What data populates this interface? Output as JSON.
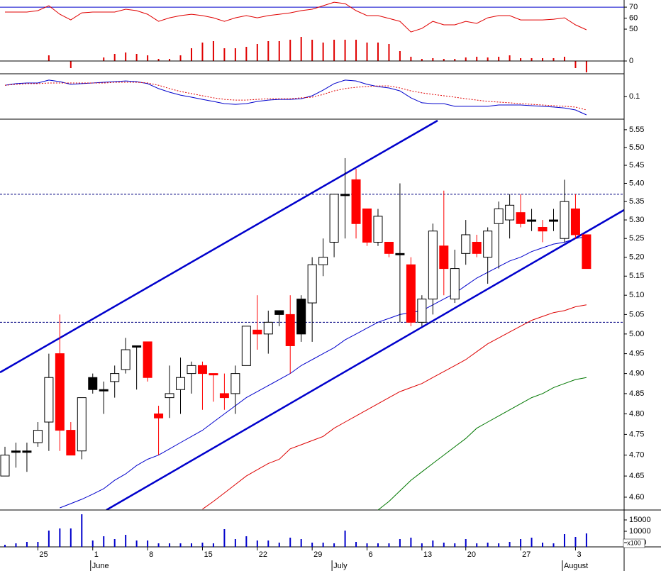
{
  "chart_data": [
    {
      "type": "line",
      "ylim": [
        9.4,
        76.5
      ],
      "yticks": [
        50,
        60,
        70
      ],
      "hlines": [
        70
      ],
      "hline_color": "#0000cc",
      "series": [
        {
          "color": "#e00000",
          "values": [
            65.5,
            65.5,
            65.5,
            66.8,
            71.3,
            63.5,
            58.4,
            64.8,
            65.5,
            65.5,
            65.5,
            68.1,
            66.8,
            63.5,
            57.1,
            60.3,
            62.3,
            63.5,
            62.3,
            60.3,
            57.1,
            60.3,
            62.3,
            60.3,
            62.3,
            63.5,
            64.8,
            66.8,
            68.1,
            71.3,
            74.5,
            73.2,
            66.8,
            62.3,
            62.3,
            59.7,
            57.1,
            47.4,
            50.6,
            57.1,
            53.9,
            53.9,
            57.1,
            55.2,
            60.3,
            62.3,
            62.3,
            58.4,
            58.4,
            58.4,
            59.0,
            60.3,
            53.9,
            49.4
          ]
        }
      ]
    },
    {
      "type": "bar",
      "ylim": [
        -18,
        86
      ],
      "yticks": [
        0
      ],
      "color": "#e00000",
      "values": [
        null,
        null,
        null,
        null,
        8,
        null,
        -10,
        null,
        null,
        5,
        10,
        12,
        10,
        8,
        3,
        3,
        8,
        18,
        26,
        28,
        18,
        18,
        20,
        24,
        28,
        28,
        30,
        34,
        30,
        26,
        30,
        30,
        30,
        26,
        26,
        24,
        14,
        6,
        3,
        4,
        3,
        3,
        5,
        6,
        5,
        6,
        8,
        4,
        4,
        4,
        4,
        6,
        -10,
        -16
      ]
    },
    {
      "type": "line",
      "ylim": [
        0,
        0.202
      ],
      "yticks": [
        0.1
      ],
      "series": [
        {
          "color": "#0000cc",
          "values": [
            0.151,
            0.158,
            0.161,
            0.161,
            0.174,
            0.167,
            0.155,
            0.158,
            0.161,
            0.164,
            0.167,
            0.17,
            0.167,
            0.158,
            0.136,
            0.12,
            0.107,
            0.098,
            0.088,
            0.079,
            0.069,
            0.066,
            0.069,
            0.079,
            0.085,
            0.088,
            0.088,
            0.091,
            0.104,
            0.129,
            0.158,
            0.174,
            0.17,
            0.155,
            0.145,
            0.139,
            0.126,
            0.095,
            0.073,
            0.069,
            0.069,
            0.057,
            0.057,
            0.057,
            0.057,
            0.063,
            0.063,
            0.063,
            0.06,
            0.057,
            0.054,
            0.05,
            0.041,
            0.019
          ]
        },
        {
          "color": "#e00000",
          "dashed": true,
          "values": [
            0.151,
            0.155,
            0.158,
            0.158,
            0.161,
            0.161,
            0.161,
            0.161,
            0.161,
            0.161,
            0.164,
            0.164,
            0.164,
            0.161,
            0.151,
            0.136,
            0.123,
            0.114,
            0.104,
            0.095,
            0.088,
            0.085,
            0.085,
            0.088,
            0.091,
            0.091,
            0.091,
            0.095,
            0.098,
            0.11,
            0.126,
            0.136,
            0.142,
            0.145,
            0.148,
            0.148,
            0.139,
            0.126,
            0.117,
            0.11,
            0.104,
            0.098,
            0.091,
            0.085,
            0.079,
            0.076,
            0.073,
            0.069,
            0.066,
            0.063,
            0.06,
            0.057,
            0.054,
            0.041
          ]
        }
      ]
    },
    {
      "type": "candlestick",
      "log_scale": true,
      "ylim": [
        4.57,
        5.58
      ],
      "yticks": [
        {
          "value": 4.6,
          "label": "4.60"
        },
        4.65,
        {
          "value": 4.7,
          "label": "4.70"
        },
        4.75,
        {
          "value": 4.8,
          "label": "4.80"
        },
        4.85,
        {
          "value": 4.9,
          "label": "4.90"
        },
        4.95,
        {
          "value": 5,
          "label": "5.00"
        },
        5.05,
        {
          "value": 5.1,
          "label": "5.10"
        },
        5.15,
        {
          "value": 5.2,
          "label": "5.20"
        },
        5.25,
        {
          "value": 5.3,
          "label": "5.30"
        },
        5.35,
        {
          "value": 5.4,
          "label": "5.40"
        },
        5.45,
        {
          "value": 5.5,
          "label": "5.50"
        },
        5.55
      ],
      "hlines": [
        5.37,
        5.03
      ],
      "hline_color": "#000080",
      "open": [
        4.65,
        4.71,
        4.71,
        4.73,
        4.78,
        4.95,
        4.76,
        4.71,
        4.89,
        4.86,
        4.88,
        4.91,
        4.97,
        4.98,
        4.8,
        4.84,
        4.86,
        4.9,
        4.92,
        4.9,
        4.85,
        4.85,
        4.92,
        5.01,
        5.0,
        5.06,
        5.05,
        5.09,
        5.08,
        5.18,
        5.24,
        5.37,
        5.41,
        5.33,
        5.24,
        5.24,
        5.21,
        5.18,
        5.03,
        5.09,
        5.23,
        5.09,
        5.21,
        5.24,
        5.2,
        5.29,
        5.3,
        5.32,
        5.3,
        5.28,
        5.3,
        5.25,
        5.33,
        5.26
      ],
      "high": [
        4.72,
        4.73,
        4.73,
        4.78,
        4.95,
        5.05,
        4.78,
        4.84,
        4.9,
        4.88,
        4.92,
        4.99,
        4.97,
        4.98,
        4.82,
        4.92,
        4.94,
        4.93,
        4.93,
        4.9,
        4.9,
        4.92,
        5.02,
        5.1,
        5.06,
        5.06,
        5.1,
        5.1,
        5.2,
        5.25,
        5.37,
        5.47,
        5.44,
        5.33,
        5.33,
        5.24,
        5.4,
        5.2,
        5.1,
        5.29,
        5.38,
        5.22,
        5.3,
        5.26,
        5.28,
        5.35,
        5.37,
        5.37,
        5.33,
        5.3,
        5.33,
        5.41,
        5.37,
        5.26
      ],
      "low": [
        4.65,
        4.67,
        4.66,
        4.72,
        4.71,
        4.71,
        4.7,
        4.69,
        4.85,
        4.8,
        4.84,
        4.9,
        4.86,
        4.88,
        4.7,
        4.79,
        4.8,
        4.85,
        4.81,
        4.83,
        4.81,
        4.8,
        4.92,
        4.96,
        4.95,
        5.02,
        4.9,
        4.98,
        4.98,
        5.15,
        5.2,
        5.25,
        5.25,
        5.23,
        5.23,
        5.2,
        5.03,
        5.02,
        5.02,
        5.05,
        5.1,
        5.08,
        5.18,
        5.2,
        5.13,
        5.17,
        5.25,
        5.28,
        5.27,
        5.24,
        5.27,
        5.24,
        5.25,
        5.17
      ],
      "close": [
        4.7,
        4.71,
        4.71,
        4.76,
        4.89,
        4.76,
        4.7,
        4.84,
        4.86,
        4.86,
        4.9,
        4.96,
        4.97,
        4.89,
        4.79,
        4.85,
        4.89,
        4.92,
        4.9,
        4.9,
        4.84,
        4.9,
        5.02,
        5.0,
        5.03,
        5.05,
        4.97,
        5.0,
        5.18,
        5.2,
        5.37,
        5.37,
        5.29,
        5.24,
        5.31,
        5.21,
        5.21,
        5.03,
        5.09,
        5.27,
        5.17,
        5.17,
        5.26,
        5.21,
        5.27,
        5.33,
        5.34,
        5.29,
        5.3,
        5.27,
        5.3,
        5.35,
        5.26,
        5.17
      ],
      "candle_colors": [
        "#ffffff",
        "#000000",
        "#000000",
        "#ffffff",
        "#ffffff",
        "#ff0000",
        "#ff0000",
        "#ffffff",
        "#000000",
        "#000000",
        "#ffffff",
        "#ffffff",
        "#000000",
        "#ff0000",
        "#ff0000",
        "#ffffff",
        "#ffffff",
        "#ffffff",
        "#ff0000",
        "#ff0000",
        "#ff0000",
        "#ffffff",
        "#ffffff",
        "#ff0000",
        "#ffffff",
        "#000000",
        "#ff0000",
        "#000000",
        "#ffffff",
        "#ffffff",
        "#ffffff",
        "#000000",
        "#ff0000",
        "#ff0000",
        "#ffffff",
        "#ff0000",
        "#000000",
        "#ff0000",
        "#ffffff",
        "#ffffff",
        "#ff0000",
        "#ffffff",
        "#ffffff",
        "#ff0000",
        "#ffffff",
        "#ffffff",
        "#ffffff",
        "#ff0000",
        "#000000",
        "#ff0000",
        "#000000",
        "#ffffff",
        "#ff0000",
        "#ff0000"
      ],
      "series": [
        {
          "color": "#0000cc",
          "values": [
            null,
            null,
            null,
            null,
            null,
            4.575,
            4.585,
            4.595,
            4.607,
            4.62,
            4.64,
            4.655,
            4.675,
            4.69,
            4.7,
            4.715,
            4.73,
            4.745,
            4.76,
            4.78,
            4.8,
            4.82,
            4.84,
            4.855,
            4.87,
            4.885,
            4.9,
            4.92,
            4.935,
            4.95,
            4.965,
            4.985,
            5.0,
            5.015,
            5.03,
            5.04,
            5.05,
            5.055,
            5.06,
            5.075,
            5.09,
            5.105,
            5.125,
            5.145,
            5.16,
            5.175,
            5.19,
            5.2,
            5.215,
            5.225,
            5.235,
            5.24,
            5.25,
            5.255
          ]
        },
        {
          "color": "#dd0000",
          "values": [
            null,
            null,
            null,
            null,
            null,
            null,
            null,
            null,
            null,
            null,
            null,
            null,
            null,
            null,
            null,
            null,
            null,
            null,
            4.572,
            4.59,
            4.61,
            4.63,
            4.65,
            4.665,
            4.68,
            4.69,
            4.715,
            4.725,
            4.735,
            4.745,
            4.765,
            4.78,
            4.795,
            4.81,
            4.825,
            4.84,
            4.855,
            4.865,
            4.875,
            4.89,
            4.905,
            4.92,
            4.935,
            4.955,
            4.975,
            4.99,
            5.005,
            5.02,
            5.035,
            5.045,
            5.055,
            5.06,
            5.07,
            5.075
          ]
        },
        {
          "color": "#007700",
          "values": [
            null,
            null,
            null,
            null,
            null,
            null,
            null,
            null,
            null,
            null,
            null,
            null,
            null,
            null,
            null,
            null,
            null,
            null,
            null,
            null,
            null,
            null,
            null,
            null,
            null,
            null,
            null,
            null,
            null,
            null,
            null,
            null,
            null,
            null,
            4.57,
            4.59,
            4.615,
            4.64,
            4.66,
            4.68,
            4.7,
            4.72,
            4.74,
            4.765,
            4.78,
            4.795,
            4.81,
            4.825,
            4.84,
            4.85,
            4.865,
            4.875,
            4.885,
            4.89
          ]
        }
      ]
    },
    {
      "type": "bar",
      "ylim": [
        3125,
        19375
      ],
      "yticks": [
        5000,
        10000,
        15000
      ],
      "ylabel": "x100",
      "color": "#0000cc",
      "values": [
        4060,
        4690,
        5310,
        5310,
        10310,
        11250,
        11250,
        17500,
        5940,
        7810,
        6560,
        8440,
        5940,
        5940,
        4690,
        4690,
        4690,
        4690,
        5000,
        4690,
        10940,
        6560,
        7810,
        5940,
        5940,
        5000,
        7190,
        6560,
        5000,
        5000,
        4690,
        10310,
        5310,
        4690,
        4690,
        4690,
        6560,
        7190,
        4690,
        5940,
        5000,
        4690,
        6560,
        4690,
        5000,
        4690,
        5310,
        6560,
        7190,
        5000,
        4690,
        8750,
        7500,
        9060
      ],
      "categories": [
        null,
        null,
        null,
        "25",
        null,
        null,
        null,
        null,
        "1",
        null,
        null,
        null,
        null,
        "8",
        null,
        null,
        null,
        null,
        "15",
        null,
        null,
        null,
        null,
        "22",
        null,
        null,
        null,
        null,
        "29",
        null,
        null,
        null,
        null,
        "6",
        null,
        null,
        null,
        null,
        "13",
        null,
        null,
        null,
        "20",
        null,
        null,
        null,
        null,
        "27",
        null,
        null,
        null,
        null,
        "3",
        null
      ],
      "months": [
        null,
        null,
        null,
        null,
        null,
        null,
        null,
        null,
        "June",
        null,
        null,
        null,
        null,
        null,
        null,
        null,
        null,
        null,
        null,
        null,
        null,
        null,
        null,
        null,
        null,
        null,
        null,
        null,
        null,
        null,
        "July",
        null,
        null,
        null,
        null,
        null,
        null,
        null,
        null,
        null,
        null,
        null,
        null,
        null,
        null,
        null,
        null,
        null,
        null,
        null,
        null,
        "August",
        null,
        null
      ]
    }
  ]
}
